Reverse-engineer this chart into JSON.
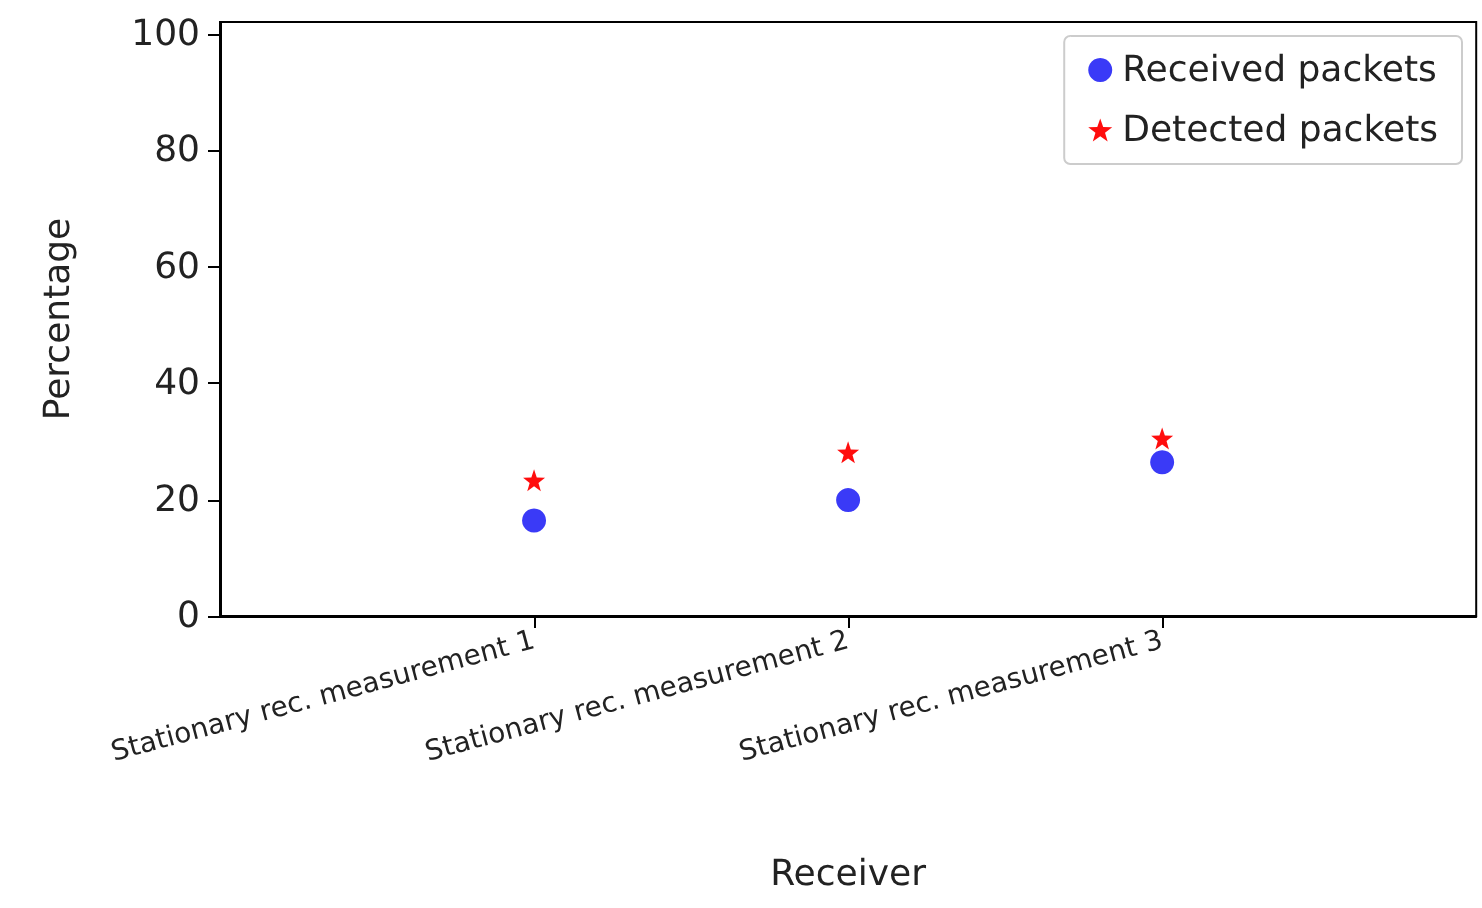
{
  "chart_data": {
    "type": "scatter",
    "xlabel": "Receiver",
    "ylabel": "Percentage",
    "categories": [
      "Stationary rec. measurement 1",
      "Stationary rec. measurement 2",
      "Stationary rec. measurement 3"
    ],
    "series": [
      {
        "name": "Received packets",
        "color": "#2f2ff7",
        "marker": "circle",
        "values": [
          16.4,
          19.9,
          26.4
        ]
      },
      {
        "name": "Detected packets",
        "color": "#ff0000",
        "marker": "star",
        "values": [
          23.3,
          28.1,
          30.5
        ]
      }
    ],
    "ylim": [
      0,
      102
    ],
    "yticks": [
      0,
      20,
      40,
      60,
      80,
      100
    ],
    "grid": false,
    "legend": "top right"
  }
}
